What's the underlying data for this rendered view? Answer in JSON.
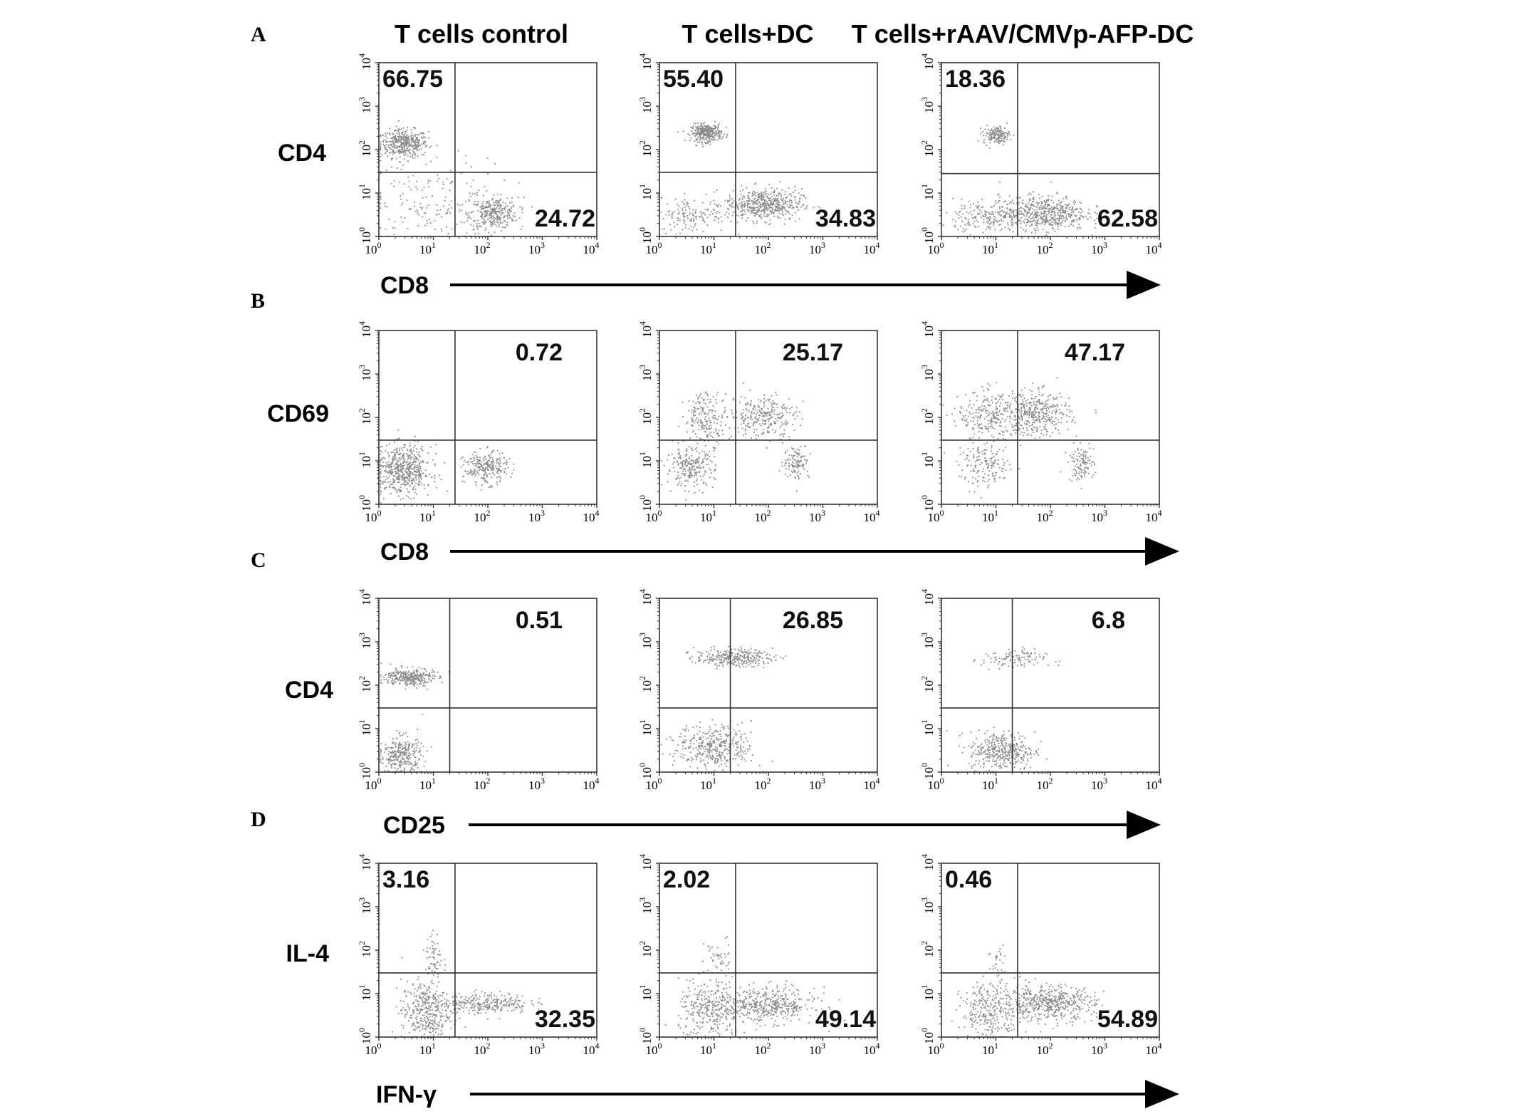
{
  "figure": {
    "panel_letters": [
      "A",
      "B",
      "C",
      "D"
    ],
    "column_titles": [
      "T cells control",
      "T cells+DC",
      "T cells+rAAV/CMVp-AFP-DC"
    ],
    "tick_labels": [
      "10",
      "10",
      "10",
      "10",
      "10"
    ],
    "tick_exponents": [
      "0",
      "1",
      "2",
      "3",
      "4"
    ],
    "colors": {
      "dots": "#8a8a8a",
      "axis": "#333333",
      "text": "#111111"
    }
  },
  "chart_data": [
    {
      "type": "scatter",
      "row": "A",
      "column": "T cells control",
      "xlabel": "CD8",
      "ylabel": "CD4",
      "xscale": "log",
      "yscale": "log",
      "xlim": [
        1,
        10000
      ],
      "ylim": [
        1,
        10000
      ],
      "gate": {
        "x": 25,
        "y": 30
      },
      "quadrant_labels": [
        {
          "quadrant": "upper-left",
          "value": "66.75"
        },
        {
          "quadrant": "lower-right",
          "value": "24.72"
        }
      ],
      "populations": [
        {
          "cx": 0.45,
          "cy": 2.15,
          "sx": 0.22,
          "sy": 0.16,
          "n": 420
        },
        {
          "cx": 2.1,
          "cy": 0.55,
          "sx": 0.22,
          "sy": 0.18,
          "n": 300
        },
        {
          "cx": 1.0,
          "cy": 0.7,
          "sx": 0.7,
          "sy": 0.55,
          "n": 200
        }
      ]
    },
    {
      "type": "scatter",
      "row": "A",
      "column": "T cells+DC",
      "xlabel": "CD8",
      "ylabel": "CD4",
      "xscale": "log",
      "yscale": "log",
      "xlim": [
        1,
        10000
      ],
      "ylim": [
        1,
        10000
      ],
      "gate": {
        "x": 25,
        "y": 30
      },
      "quadrant_labels": [
        {
          "quadrant": "upper-left",
          "value": "55.40"
        },
        {
          "quadrant": "lower-right",
          "value": "34.83"
        }
      ],
      "populations": [
        {
          "cx": 0.85,
          "cy": 2.4,
          "sx": 0.14,
          "sy": 0.1,
          "n": 320
        },
        {
          "cx": 1.9,
          "cy": 0.75,
          "sx": 0.35,
          "sy": 0.18,
          "n": 520
        },
        {
          "cx": 0.6,
          "cy": 0.5,
          "sx": 0.3,
          "sy": 0.2,
          "n": 140
        }
      ]
    },
    {
      "type": "scatter",
      "row": "A",
      "column": "T cells+rAAV/CMVp-AFP-DC",
      "xlabel": "CD8",
      "ylabel": "CD4",
      "xscale": "log",
      "yscale": "log",
      "xlim": [
        1,
        10000
      ],
      "ylim": [
        1,
        10000
      ],
      "gate": {
        "x": 25,
        "y": 28
      },
      "quadrant_labels": [
        {
          "quadrant": "upper-left",
          "value": "18.36"
        },
        {
          "quadrant": "lower-right",
          "value": "62.58"
        }
      ],
      "populations": [
        {
          "cx": 1.0,
          "cy": 2.35,
          "sx": 0.12,
          "sy": 0.1,
          "n": 160
        },
        {
          "cx": 1.85,
          "cy": 0.55,
          "sx": 0.4,
          "sy": 0.2,
          "n": 560
        },
        {
          "cx": 0.8,
          "cy": 0.45,
          "sx": 0.3,
          "sy": 0.2,
          "n": 180
        }
      ]
    },
    {
      "type": "scatter",
      "row": "B",
      "column": "T cells control",
      "xlabel": "CD8",
      "ylabel": "CD69",
      "xscale": "log",
      "yscale": "log",
      "xlim": [
        1,
        10000
      ],
      "ylim": [
        1,
        10000
      ],
      "gate": {
        "x": 25,
        "y": 30
      },
      "quadrant_labels": [
        {
          "quadrant": "upper-right",
          "value": "0.72"
        }
      ],
      "populations": [
        {
          "cx": 0.45,
          "cy": 0.8,
          "sx": 0.25,
          "sy": 0.28,
          "n": 560
        },
        {
          "cx": 1.95,
          "cy": 0.85,
          "sx": 0.2,
          "sy": 0.18,
          "n": 260
        }
      ]
    },
    {
      "type": "scatter",
      "row": "B",
      "column": "T cells+DC",
      "xlabel": "CD8",
      "ylabel": "CD69",
      "xscale": "log",
      "yscale": "log",
      "xlim": [
        1,
        10000
      ],
      "ylim": [
        1,
        10000
      ],
      "gate": {
        "x": 25,
        "y": 30
      },
      "quadrant_labels": [
        {
          "quadrant": "upper-right",
          "value": "25.17"
        }
      ],
      "populations": [
        {
          "cx": 0.85,
          "cy": 2.0,
          "sx": 0.2,
          "sy": 0.3,
          "n": 200
        },
        {
          "cx": 1.9,
          "cy": 2.05,
          "sx": 0.3,
          "sy": 0.25,
          "n": 280
        },
        {
          "cx": 0.55,
          "cy": 0.85,
          "sx": 0.22,
          "sy": 0.22,
          "n": 240
        },
        {
          "cx": 2.5,
          "cy": 1.0,
          "sx": 0.12,
          "sy": 0.2,
          "n": 120
        }
      ]
    },
    {
      "type": "scatter",
      "row": "B",
      "column": "T cells+rAAV/CMVp-AFP-DC",
      "xlabel": "CD8",
      "ylabel": "CD69",
      "xscale": "log",
      "yscale": "log",
      "xlim": [
        1,
        10000
      ],
      "ylim": [
        1,
        10000
      ],
      "gate": {
        "x": 25,
        "y": 30
      },
      "quadrant_labels": [
        {
          "quadrant": "upper-right",
          "value": "47.17"
        }
      ],
      "populations": [
        {
          "cx": 0.9,
          "cy": 2.05,
          "sx": 0.3,
          "sy": 0.28,
          "n": 260
        },
        {
          "cx": 1.75,
          "cy": 2.1,
          "sx": 0.3,
          "sy": 0.25,
          "n": 380
        },
        {
          "cx": 0.8,
          "cy": 0.9,
          "sx": 0.25,
          "sy": 0.25,
          "n": 160
        },
        {
          "cx": 2.55,
          "cy": 0.95,
          "sx": 0.12,
          "sy": 0.2,
          "n": 120
        }
      ]
    },
    {
      "type": "scatter",
      "row": "C",
      "column": "T cells control",
      "xlabel": "CD25",
      "ylabel": "CD4",
      "xscale": "log",
      "yscale": "log",
      "xlim": [
        1,
        10000
      ],
      "ylim": [
        1,
        10000
      ],
      "gate": {
        "x": 20,
        "y": 30
      },
      "quadrant_labels": [
        {
          "quadrant": "upper-right",
          "value": "0.51"
        }
      ],
      "populations": [
        {
          "cx": 0.55,
          "cy": 2.2,
          "sx": 0.22,
          "sy": 0.1,
          "n": 320
        },
        {
          "cx": 0.4,
          "cy": 0.4,
          "sx": 0.2,
          "sy": 0.22,
          "n": 300
        }
      ]
    },
    {
      "type": "scatter",
      "row": "C",
      "column": "T cells+DC",
      "xlabel": "CD25",
      "ylabel": "CD4",
      "xscale": "log",
      "yscale": "log",
      "xlim": [
        1,
        10000
      ],
      "ylim": [
        1,
        10000
      ],
      "gate": {
        "x": 20,
        "y": 30
      },
      "quadrant_labels": [
        {
          "quadrant": "upper-right",
          "value": "26.85"
        }
      ],
      "populations": [
        {
          "cx": 1.35,
          "cy": 2.65,
          "sx": 0.35,
          "sy": 0.1,
          "n": 300
        },
        {
          "cx": 1.0,
          "cy": 0.6,
          "sx": 0.35,
          "sy": 0.25,
          "n": 380
        }
      ]
    },
    {
      "type": "scatter",
      "row": "C",
      "column": "T cells+rAAV/CMVp-AFP-DC",
      "xlabel": "CD25",
      "ylabel": "CD4",
      "xscale": "log",
      "yscale": "log",
      "xlim": [
        1,
        10000
      ],
      "ylim": [
        1,
        10000
      ],
      "gate": {
        "x": 20,
        "y": 30
      },
      "quadrant_labels": [
        {
          "quadrant": "upper-right",
          "value": "6.8"
        }
      ],
      "populations": [
        {
          "cx": 1.3,
          "cy": 2.6,
          "sx": 0.3,
          "sy": 0.12,
          "n": 110
        },
        {
          "cx": 1.1,
          "cy": 0.5,
          "sx": 0.3,
          "sy": 0.22,
          "n": 400
        }
      ]
    },
    {
      "type": "scatter",
      "row": "D",
      "column": "T cells control",
      "xlabel": "IFN-γ",
      "ylabel": "IL-4",
      "xscale": "log",
      "yscale": "log",
      "xlim": [
        1,
        10000
      ],
      "ylim": [
        1,
        10000
      ],
      "gate": {
        "x": 25,
        "y": 30
      },
      "quadrant_labels": [
        {
          "quadrant": "upper-left",
          "value": "3.16"
        },
        {
          "quadrant": "lower-right",
          "value": "32.35"
        }
      ],
      "populations": [
        {
          "cx": 0.85,
          "cy": 0.6,
          "sx": 0.22,
          "sy": 0.35,
          "n": 380
        },
        {
          "cx": 1.95,
          "cy": 0.8,
          "sx": 0.4,
          "sy": 0.12,
          "n": 280
        },
        {
          "cx": 1.0,
          "cy": 1.85,
          "sx": 0.08,
          "sy": 0.3,
          "n": 60
        }
      ]
    },
    {
      "type": "scatter",
      "row": "D",
      "column": "T cells+DC",
      "xlabel": "IFN-γ",
      "ylabel": "IL-4",
      "xscale": "log",
      "yscale": "log",
      "xlim": [
        1,
        10000
      ],
      "ylim": [
        1,
        10000
      ],
      "gate": {
        "x": 25,
        "y": 30
      },
      "quadrant_labels": [
        {
          "quadrant": "upper-left",
          "value": "2.02"
        },
        {
          "quadrant": "lower-right",
          "value": "49.14"
        }
      ],
      "populations": [
        {
          "cx": 0.9,
          "cy": 0.6,
          "sx": 0.28,
          "sy": 0.35,
          "n": 300
        },
        {
          "cx": 1.95,
          "cy": 0.75,
          "sx": 0.45,
          "sy": 0.2,
          "n": 480
        },
        {
          "cx": 1.05,
          "cy": 1.75,
          "sx": 0.12,
          "sy": 0.3,
          "n": 50
        }
      ]
    },
    {
      "type": "scatter",
      "row": "D",
      "column": "T cells+rAAV/CMVp-AFP-DC",
      "xlabel": "IFN-γ",
      "ylabel": "IL-4",
      "xscale": "log",
      "yscale": "log",
      "xlim": [
        1,
        10000
      ],
      "ylim": [
        1,
        10000
      ],
      "gate": {
        "x": 25,
        "y": 30
      },
      "quadrant_labels": [
        {
          "quadrant": "upper-left",
          "value": "0.46"
        },
        {
          "quadrant": "lower-right",
          "value": "54.89"
        }
      ],
      "populations": [
        {
          "cx": 0.9,
          "cy": 0.6,
          "sx": 0.28,
          "sy": 0.33,
          "n": 300
        },
        {
          "cx": 1.95,
          "cy": 0.8,
          "sx": 0.42,
          "sy": 0.2,
          "n": 520
        },
        {
          "cx": 1.05,
          "cy": 1.7,
          "sx": 0.1,
          "sy": 0.25,
          "n": 30
        }
      ]
    }
  ]
}
